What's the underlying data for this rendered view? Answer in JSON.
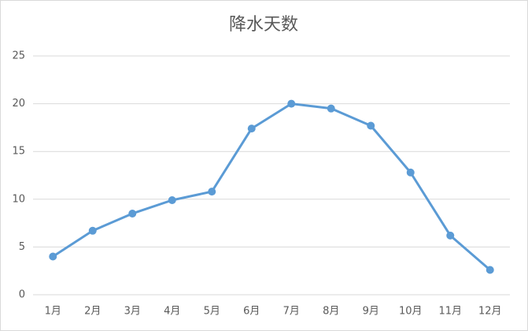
{
  "chart_data": {
    "type": "line",
    "title": "降水天数",
    "categories": [
      "1月",
      "2月",
      "3月",
      "4月",
      "5月",
      "6月",
      "7月",
      "8月",
      "9月",
      "10月",
      "11月",
      "12月"
    ],
    "values": [
      4.0,
      6.7,
      8.5,
      9.9,
      10.8,
      17.4,
      20.0,
      19.5,
      17.7,
      12.8,
      6.2,
      2.6
    ],
    "color": "#5b9bd5",
    "ylim": [
      0,
      25
    ],
    "yticks": [
      0,
      5,
      10,
      15,
      20,
      25
    ],
    "grid": true
  }
}
